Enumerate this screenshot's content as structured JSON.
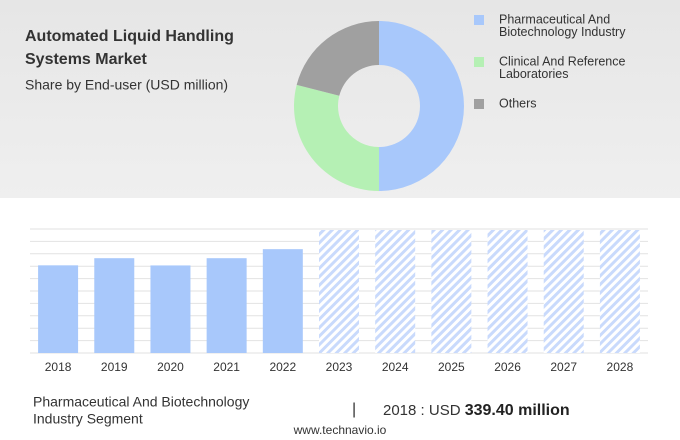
{
  "header": {
    "title_lines": [
      "Automated Liquid Handling",
      "Systems Market"
    ],
    "subtitle": "Share by End-user (USD million)"
  },
  "chart_data": [
    {
      "type": "donut",
      "categories": [
        "Pharmaceutical And Biotechnology Industry",
        "Clinical And Reference Laboratories",
        "Others"
      ],
      "legend_lines": [
        [
          "Pharmaceutical And",
          "Biotechnology Industry"
        ],
        [
          "Clinical And Reference",
          "Laboratories"
        ],
        [
          "Others"
        ]
      ],
      "values": [
        50,
        29,
        21
      ],
      "colors": [
        "#a8c8fb",
        "#b5f0b4",
        "#a0a0a0"
      ]
    },
    {
      "type": "bar",
      "categories": [
        "2018",
        "2019",
        "2020",
        "2021",
        "2022",
        "2023",
        "2024",
        "2025",
        "2026",
        "2027",
        "2028"
      ],
      "values": [
        339.4,
        367,
        339,
        367,
        402,
        null,
        null,
        null,
        null,
        null,
        null
      ],
      "color": "#a8c8fb",
      "forecast_color": "#c9dafc",
      "ylim": [
        0,
        480
      ],
      "grid": true
    }
  ],
  "footer": {
    "segment_lines": [
      "Pharmaceutical And Biotechnology",
      "Industry Segment"
    ],
    "separator": "|",
    "year_label": "2018 : USD",
    "value_label": "339.40 million",
    "source": "www.technavio.io"
  }
}
